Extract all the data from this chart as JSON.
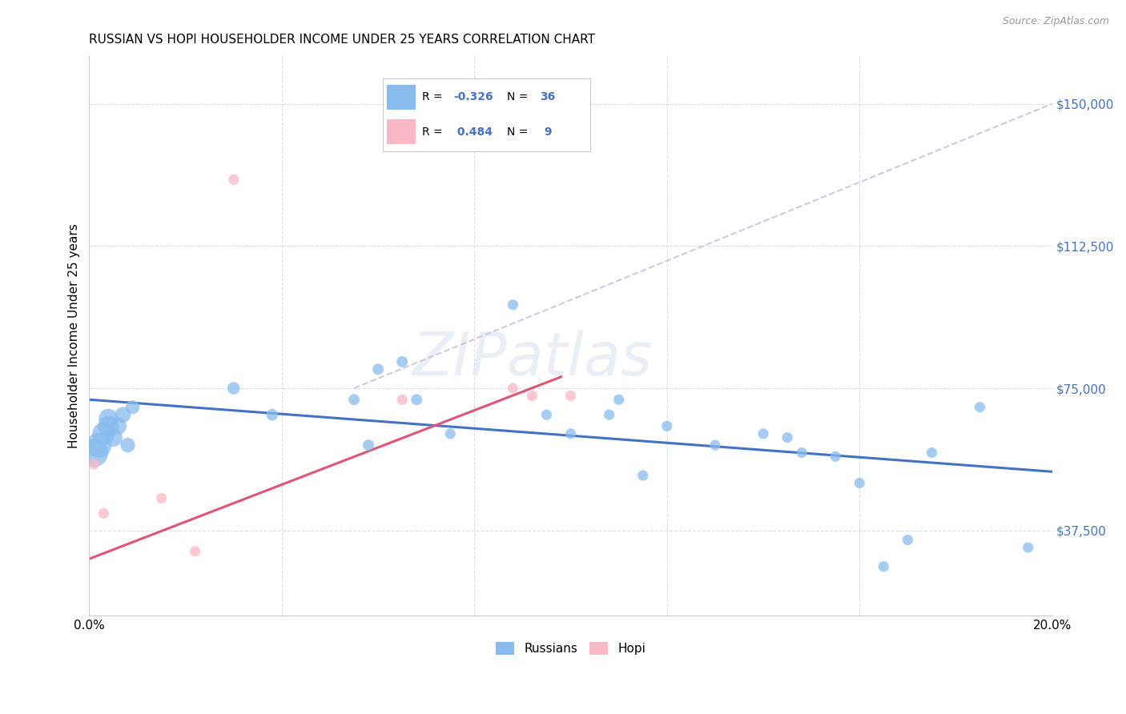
{
  "title": "RUSSIAN VS HOPI HOUSEHOLDER INCOME UNDER 25 YEARS CORRELATION CHART",
  "source": "Source: ZipAtlas.com",
  "ylabel": "Householder Income Under 25 years",
  "xlim": [
    0.0,
    0.2
  ],
  "ylim": [
    15000,
    162500
  ],
  "yticks": [
    37500,
    75000,
    112500,
    150000
  ],
  "ytick_labels": [
    "$37,500",
    "$75,000",
    "$112,500",
    "$150,000"
  ],
  "xticks": [
    0.0,
    0.04,
    0.08,
    0.12,
    0.16,
    0.2
  ],
  "xtick_labels": [
    "0.0%",
    "",
    "",
    "",
    "",
    "20.0%"
  ],
  "watermark": "ZIPatlas",
  "russian_color": "#88bbee",
  "hopi_color": "#f9b8c6",
  "russian_line_color": "#4472c4",
  "hopi_line_color": "#e05575",
  "diagonal_color": "#d0c8e0",
  "russians_x": [
    0.001,
    0.002,
    0.003,
    0.004,
    0.004,
    0.005,
    0.006,
    0.007,
    0.008,
    0.009,
    0.03,
    0.038,
    0.055,
    0.058,
    0.06,
    0.065,
    0.068,
    0.075,
    0.088,
    0.095,
    0.1,
    0.108,
    0.11,
    0.115,
    0.12,
    0.13,
    0.14,
    0.145,
    0.148,
    0.155,
    0.16,
    0.165,
    0.17,
    0.175,
    0.185,
    0.195
  ],
  "russians_y": [
    58000,
    60000,
    63000,
    65000,
    67000,
    62000,
    65000,
    68000,
    60000,
    70000,
    75000,
    68000,
    72000,
    60000,
    80000,
    82000,
    72000,
    63000,
    97000,
    68000,
    63000,
    68000,
    72000,
    52000,
    65000,
    60000,
    63000,
    62000,
    58000,
    57000,
    50000,
    28000,
    35000,
    58000,
    70000,
    33000
  ],
  "russians_size": [
    650,
    520,
    420,
    360,
    310,
    270,
    230,
    200,
    175,
    155,
    125,
    110,
    100,
    100,
    100,
    100,
    100,
    90,
    90,
    90,
    90,
    90,
    90,
    90,
    90,
    90,
    90,
    90,
    90,
    90,
    90,
    90,
    90,
    90,
    90,
    90
  ],
  "hopi_x": [
    0.001,
    0.003,
    0.015,
    0.022,
    0.065,
    0.088,
    0.092,
    0.03,
    0.1
  ],
  "hopi_y": [
    55000,
    42000,
    46000,
    32000,
    72000,
    75000,
    73000,
    130000,
    73000
  ],
  "hopi_size": [
    90,
    90,
    90,
    90,
    90,
    90,
    90,
    90,
    90
  ],
  "blue_line_x": [
    0.0,
    0.2
  ],
  "blue_line_y": [
    72000,
    53000
  ],
  "pink_line_x": [
    0.0,
    0.098
  ],
  "pink_line_y": [
    30000,
    78000
  ],
  "diag_line_x": [
    0.055,
    0.2
  ],
  "diag_line_y": [
    75000,
    150000
  ]
}
